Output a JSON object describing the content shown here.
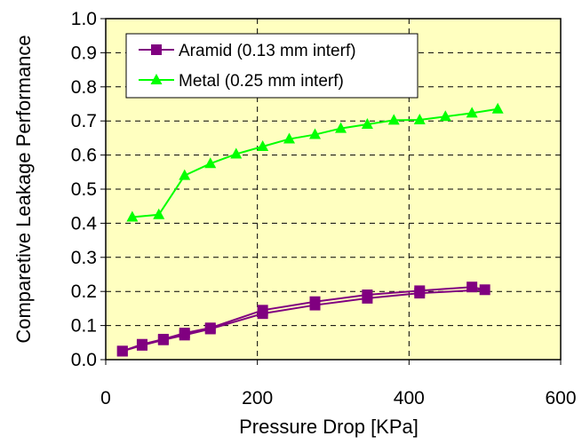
{
  "chart_data": {
    "type": "line",
    "xlabel": "Pressure Drop [KPa]",
    "ylabel": "Comparetive Leakage Performance",
    "xlim": [
      0,
      600
    ],
    "ylim": [
      0,
      1.0
    ],
    "x_ticks": [
      "0",
      "200",
      "400",
      "600"
    ],
    "y_ticks": [
      "0.0",
      "0.1",
      "0.2",
      "0.3",
      "0.4",
      "0.5",
      "0.6",
      "0.7",
      "0.8",
      "0.9",
      "1.0"
    ],
    "grid": "dashed",
    "plot_background": "#ffffc0",
    "legend_placement": "top-left",
    "series": [
      {
        "name": "Aramid (0.13 mm interf)",
        "color": "#800080",
        "marker": "square",
        "x": [
          22,
          48,
          76,
          104,
          138,
          207,
          276,
          345,
          414,
          483,
          500,
          414,
          345,
          276,
          207,
          138,
          104,
          76,
          48,
          22
        ],
        "y": [
          0.025,
          0.045,
          0.06,
          0.078,
          0.093,
          0.145,
          0.17,
          0.19,
          0.202,
          0.213,
          0.205,
          0.195,
          0.18,
          0.16,
          0.135,
          0.09,
          0.072,
          0.058,
          0.042,
          0.025
        ]
      },
      {
        "name": "Metal (0.25 mm interf)",
        "color": "#00ff00",
        "marker": "triangle",
        "x": [
          35,
          70,
          104,
          138,
          172,
          207,
          242,
          276,
          310,
          345,
          380,
          414,
          448,
          483,
          517
        ],
        "y": [
          0.418,
          0.425,
          0.54,
          0.575,
          0.603,
          0.625,
          0.647,
          0.66,
          0.678,
          0.69,
          0.702,
          0.703,
          0.713,
          0.723,
          0.735
        ]
      }
    ]
  }
}
